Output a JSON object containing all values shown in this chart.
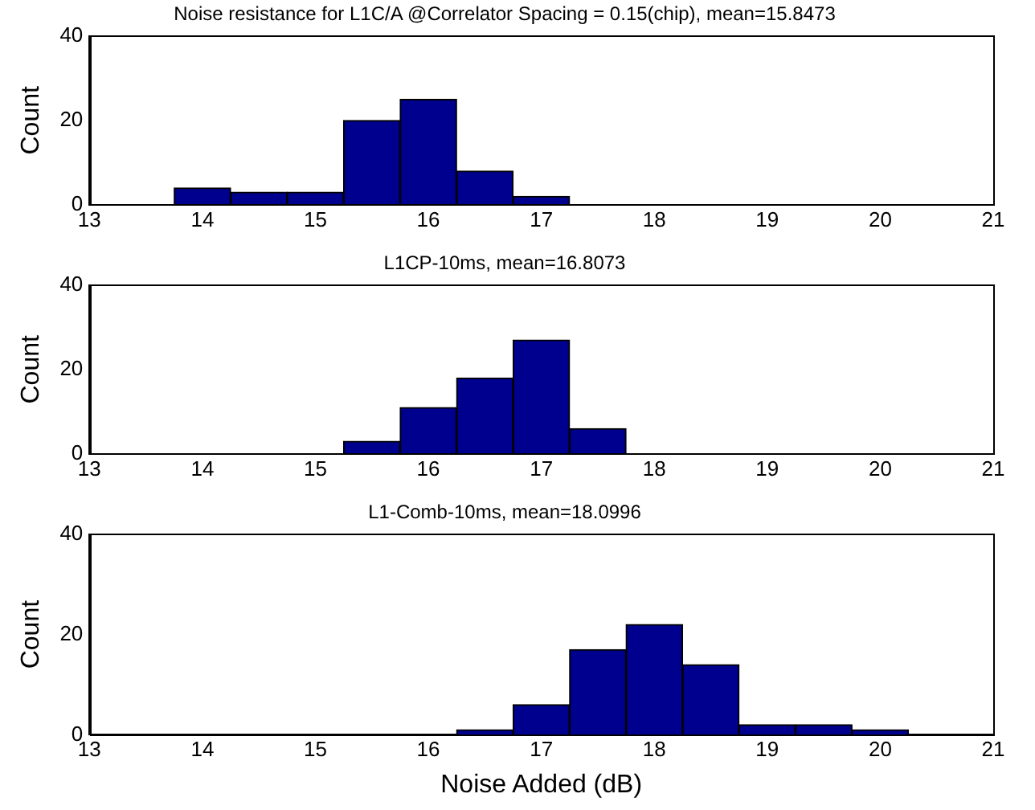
{
  "chart_data": [
    {
      "type": "histogram",
      "title": "Noise resistance for L1C/A @Correlator Spacing = 0.15(chip), mean=15.8473",
      "ylabel": "Count",
      "bins": [
        13.75,
        14.25,
        14.75,
        15.25,
        15.75,
        16.25,
        16.75,
        17.25,
        17.75,
        18.25,
        18.75,
        19.25,
        19.75,
        20.25
      ],
      "values": [
        4,
        3,
        3,
        20,
        25,
        8,
        2,
        0,
        0,
        0,
        0,
        0,
        0
      ],
      "color": "#00008f",
      "xlim": [
        13,
        21
      ],
      "xticks": [
        13,
        14,
        15,
        16,
        17,
        18,
        19,
        20,
        21
      ],
      "ylim": [
        0,
        40
      ],
      "yticks": [
        0,
        20,
        40
      ],
      "grid": false
    },
    {
      "type": "histogram",
      "title": "L1CP-10ms, mean=16.8073",
      "ylabel": "Count",
      "bins": [
        13.75,
        14.25,
        14.75,
        15.25,
        15.75,
        16.25,
        16.75,
        17.25,
        17.75,
        18.25,
        18.75,
        19.25,
        19.75,
        20.25
      ],
      "values": [
        0,
        0,
        0,
        3,
        11,
        18,
        27,
        6,
        0,
        0,
        0,
        0,
        0
      ],
      "color": "#00008f",
      "xlim": [
        13,
        21
      ],
      "xticks": [
        13,
        14,
        15,
        16,
        17,
        18,
        19,
        20,
        21
      ],
      "ylim": [
        0,
        40
      ],
      "yticks": [
        0,
        20,
        40
      ],
      "grid": false
    },
    {
      "type": "histogram",
      "title": "L1-Comb-10ms, mean=18.0996",
      "ylabel": "Count",
      "xlabel": "Noise Added (dB)",
      "bins": [
        13.75,
        14.25,
        14.75,
        15.25,
        15.75,
        16.25,
        16.75,
        17.25,
        17.75,
        18.25,
        18.75,
        19.25,
        19.75,
        20.25
      ],
      "values": [
        0,
        0,
        0,
        0,
        0,
        1,
        6,
        17,
        22,
        14,
        2,
        2,
        1
      ],
      "color": "#00008f",
      "xlim": [
        13,
        21
      ],
      "xticks": [
        13,
        14,
        15,
        16,
        17,
        18,
        19,
        20,
        21
      ],
      "ylim": [
        0,
        40
      ],
      "yticks": [
        0,
        20,
        40
      ],
      "grid": false
    }
  ]
}
